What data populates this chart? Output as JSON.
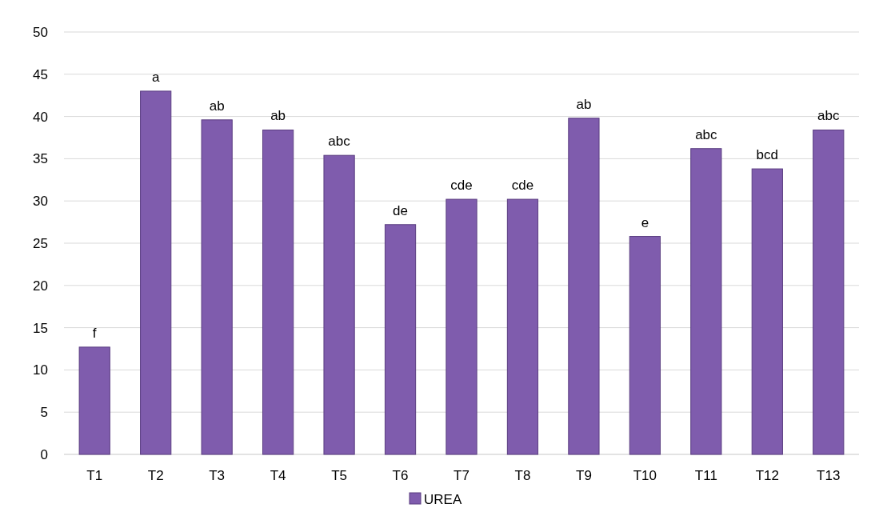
{
  "chart_data": {
    "type": "bar",
    "categories": [
      "T1",
      "T2",
      "T3",
      "T4",
      "T5",
      "T6",
      "T7",
      "T8",
      "T9",
      "T10",
      "T11",
      "T12",
      "T13"
    ],
    "series": [
      {
        "name": "UREA",
        "color": "#7f5cad",
        "values": [
          12.7,
          43.0,
          39.6,
          38.4,
          35.4,
          27.2,
          30.2,
          30.2,
          39.8,
          25.8,
          36.2,
          33.8,
          38.4
        ]
      }
    ],
    "ylim": [
      0,
      50
    ],
    "yticks": [
      0,
      5,
      10,
      15,
      20,
      25,
      30,
      35,
      40,
      45,
      50
    ],
    "grid": "y",
    "legend": "bottom",
    "annotations": [
      {
        "text": "f",
        "x": "T1",
        "y": 12.7
      },
      {
        "text": "a",
        "x": "T2",
        "y": 43.0
      },
      {
        "text": "ab",
        "x": "T3",
        "y": 39.6
      },
      {
        "text": "ab",
        "x": "T4",
        "y": 38.4
      },
      {
        "text": "abc",
        "x": "T5",
        "y": 35.4
      },
      {
        "text": "de",
        "x": "T6",
        "y": 27.2
      },
      {
        "text": "cde",
        "x": "T7",
        "y": 30.2
      },
      {
        "text": "cde",
        "x": "T8",
        "y": 30.2
      },
      {
        "text": "ab",
        "x": "T9",
        "y": 39.8
      },
      {
        "text": "e",
        "x": "T10",
        "y": 25.8
      },
      {
        "text": "abc",
        "x": "T11",
        "y": 36.2
      },
      {
        "text": "bcd",
        "x": "T12",
        "y": 33.8
      },
      {
        "text": "abc",
        "x": "T13",
        "y": 38.4
      }
    ]
  }
}
